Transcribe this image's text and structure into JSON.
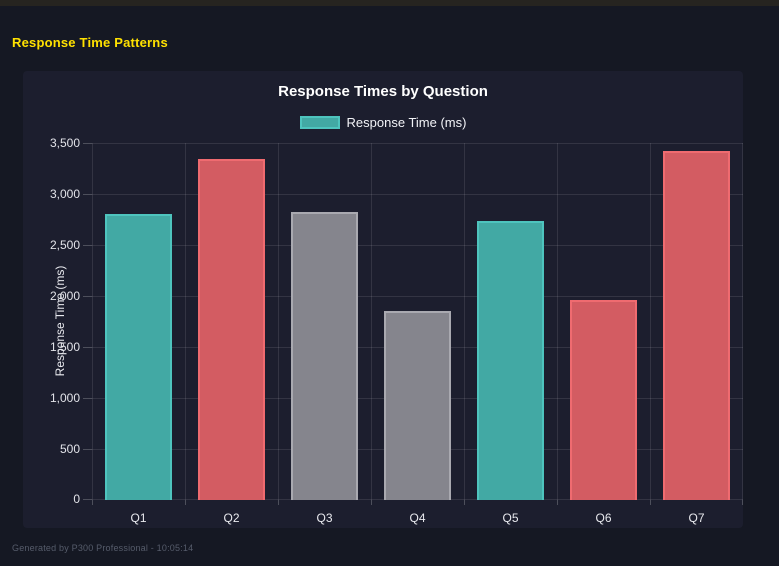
{
  "page": {
    "title": "Response Time Patterns"
  },
  "footer": {
    "text": "Generated by P300 Professional - 10:05:14"
  },
  "chart_data": {
    "type": "bar",
    "title": "Response Times by Question",
    "legend": [
      {
        "label": "Response Time (ms)",
        "fill": "#42a9a4",
        "border": "#4ec4be"
      }
    ],
    "legend_position": "top",
    "categories": [
      "Q1",
      "Q2",
      "Q3",
      "Q4",
      "Q5",
      "Q6",
      "Q7"
    ],
    "values": [
      2800,
      3340,
      2820,
      1850,
      2740,
      1960,
      3420
    ],
    "bar_colors": [
      "teal",
      "red",
      "gray",
      "gray",
      "teal",
      "red",
      "red"
    ],
    "palette": {
      "teal": {
        "fill": "#42a9a4",
        "border": "#4ec4be"
      },
      "red": {
        "fill": "#d35c62",
        "border": "#ef6b70"
      },
      "gray": {
        "fill": "#85858d",
        "border": "#a9a9b0"
      }
    },
    "xlabel": "",
    "ylabel": "Response Time (ms)",
    "ylim": [
      0,
      3500
    ],
    "ytick_step": 500,
    "ytick_labels": [
      "0",
      "500",
      "1,000",
      "1,500",
      "2,000",
      "2,500",
      "3,000",
      "3,500"
    ],
    "grid": true
  }
}
